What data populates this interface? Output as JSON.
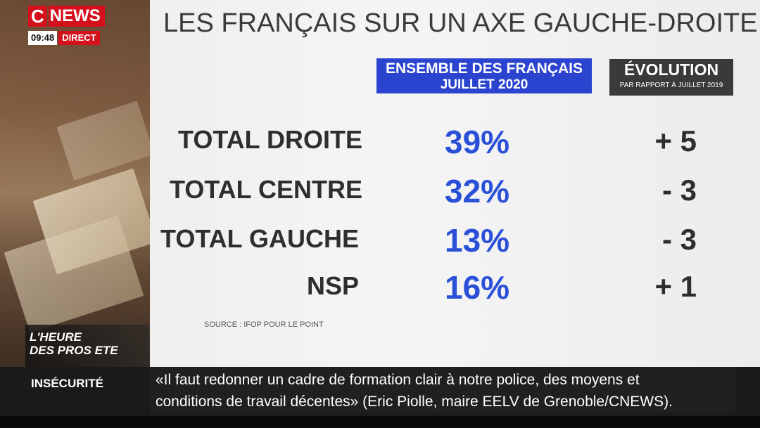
{
  "channel": {
    "logo_letter": "C",
    "logo_word": "NEWS",
    "clock": "09:48",
    "live": "DIRECT",
    "brand_color": "#d4101d"
  },
  "program": {
    "line1": "L'HEURE",
    "line2": "DES PROS ETE"
  },
  "ticker": {
    "label": "INSÉCURITÉ",
    "line1": "«Il faut redonner un cadre de formation clair à notre police, des moyens et",
    "line2": "conditions de travail décentes» (Eric Piolle, maire EELV de Grenoble/CNEWS)."
  },
  "chart_data": {
    "type": "table",
    "title": "LES FRANÇAIS SUR UN AXE GAUCHE-DROITE",
    "columns": [
      {
        "line1": "ENSEMBLE DES FRANÇAIS",
        "line2": "JUILLET 2020",
        "color": "#2a44d0"
      },
      {
        "line1": "ÉVOLUTION",
        "line2": "PAR RAPPORT À JUILLET 2019",
        "color": "#3a3a3a"
      }
    ],
    "rows": [
      {
        "label": "TOTAL DROITE",
        "value": "39%",
        "evolution": "+ 5"
      },
      {
        "label": "TOTAL CENTRE",
        "value": "32%",
        "evolution": "- 3"
      },
      {
        "label": "TOTAL GAUCHE",
        "value": "13%",
        "evolution": "- 3"
      },
      {
        "label": "NSP",
        "value": "16%",
        "evolution": "+ 1"
      }
    ],
    "source": "SOURCE : IFOP POUR LE POINT",
    "value_color": "#2a50d8"
  }
}
